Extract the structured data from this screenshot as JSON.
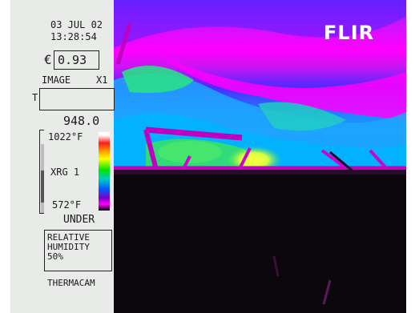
{
  "camera_ui": {
    "date": "03 JUL 02",
    "time": "13:28:54",
    "emissivity": {
      "symbol": "€",
      "value": "0.93"
    },
    "image_label": "IMAGE",
    "zoom_label": "X1",
    "target_label": "T",
    "spot_reading": "948.0",
    "scale_max": "1022°F",
    "scale_mode": "XRG 1",
    "scale_min": "572°F",
    "status": "UNDER",
    "humidity_text": [
      "RELATIVE",
      "HUMIDITY",
      "50%"
    ],
    "brand_small": "THERMACAM",
    "brand_logo": "FLIR"
  },
  "palette": {
    "accent": "#ff00ff",
    "panel_bg": "#e9ebe9"
  }
}
